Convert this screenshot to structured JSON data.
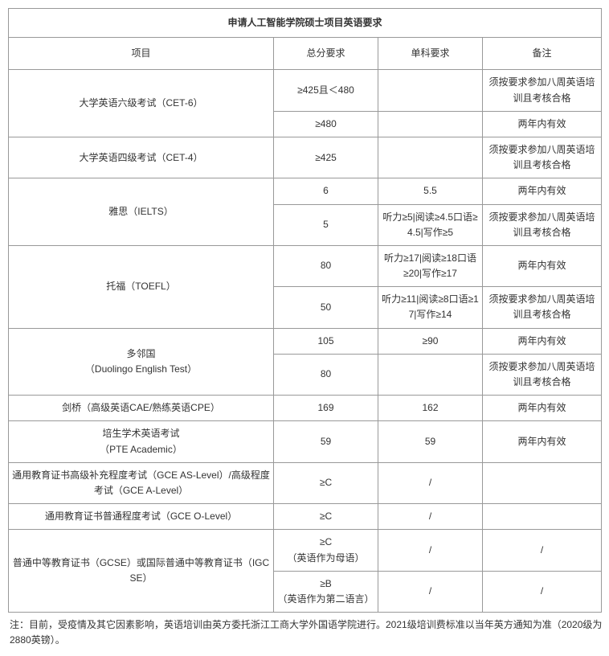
{
  "title": "申请人工智能学院硕士项目英语要求",
  "headers": {
    "exam": "项目",
    "total": "总分要求",
    "section": "单科要求",
    "note": "备注"
  },
  "note_training": "须按要求参加八周英语培训且考核合格",
  "note_valid": "两年内有效",
  "cet6": {
    "name": "大学英语六级考试（CET-6）",
    "r1_total": "≥425且＜480",
    "r2_total": "≥480"
  },
  "cet4": {
    "name": "大学英语四级考试（CET-4）",
    "total": "≥425"
  },
  "ielts": {
    "name": "雅思（IELTS）",
    "r1_total": "6",
    "r1_section": "5.5",
    "r2_total": "5",
    "r2_section": "听力≥5|阅读≥4.5口语≥4.5|写作≥5"
  },
  "toefl": {
    "name": "托福（TOEFL）",
    "r1_total": "80",
    "r1_section": "听力≥17|阅读≥18口语≥20|写作≥17",
    "r2_total": "50",
    "r2_section": "听力≥11|阅读≥8口语≥17|写作≥14"
  },
  "duolingo": {
    "name_line1": "多邻国",
    "name_line2": "（Duolingo English Test）",
    "r1_total": "105",
    "r1_section": "≥90",
    "r2_total": "80"
  },
  "cambridge": {
    "name": "剑桥（高级英语CAE/熟练英语CPE）",
    "total": "169",
    "section": "162"
  },
  "pte": {
    "name_line1": "培生学术英语考试",
    "name_line2": "（PTE Academic）",
    "total": "59",
    "section": "59"
  },
  "gce_a": {
    "name": "通用教育证书高级补充程度考试（GCE AS-Level）/高级程度考试（GCE A-Level）",
    "total": "≥C",
    "section": "/"
  },
  "gce_o": {
    "name": "通用教育证书普通程度考试（GCE O-Level）",
    "total": "≥C",
    "section": "/"
  },
  "gcse": {
    "name": "普通中等教育证书（GCSE）或国际普通中等教育证书（IGCSE）",
    "r1_total_line1": "≥C",
    "r1_total_line2": "（英语作为母语）",
    "r1_section": "/",
    "r1_note": "/",
    "r2_total_line1": "≥B",
    "r2_total_line2": "（英语作为第二语言）",
    "r2_section": "/",
    "r2_note": "/"
  },
  "footnote": "注：目前，受疫情及其它因素影响，英语培训由英方委托浙江工商大学外国语学院进行。2021级培训费标准以当年英方通知为准（2020级为2880英镑）。"
}
